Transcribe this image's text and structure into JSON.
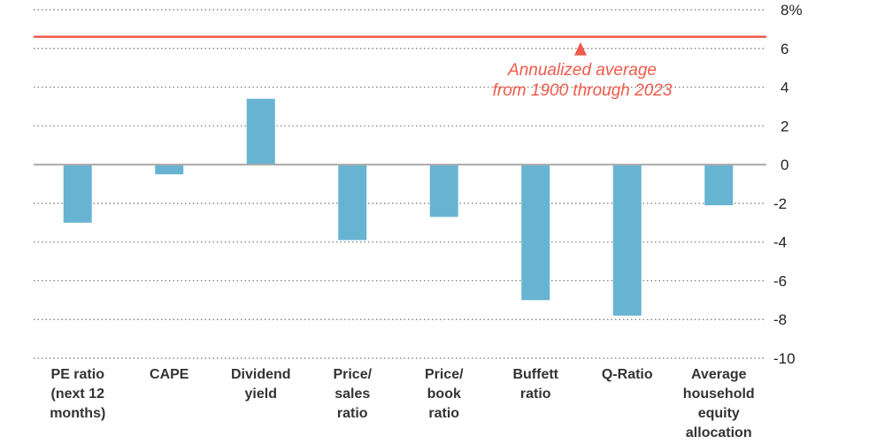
{
  "chart_data": {
    "type": "bar",
    "title": "",
    "xlabel": "",
    "ylabel": "",
    "ylim": [
      -10,
      8
    ],
    "y_ticks": [
      "8%",
      "6",
      "4",
      "2",
      "0",
      "-2",
      "-4",
      "-6",
      "-8",
      "-10"
    ],
    "y_tick_values": [
      8,
      6,
      4,
      2,
      0,
      -2,
      -4,
      -6,
      -8,
      -10
    ],
    "grid": true,
    "categories": [
      [
        "PE ratio",
        "(next 12",
        "months)"
      ],
      [
        "CAPE"
      ],
      [
        "Dividend",
        "yield"
      ],
      [
        "Price/",
        "sales",
        "ratio"
      ],
      [
        "Price/",
        "book",
        "ratio"
      ],
      [
        "Buffett",
        "ratio"
      ],
      [
        "Q-Ratio"
      ],
      [
        "Average",
        "household",
        "equity",
        "allocation"
      ]
    ],
    "values": [
      -3.0,
      -0.5,
      3.4,
      -3.9,
      -2.7,
      -7.0,
      -7.8,
      -2.1
    ],
    "reference_line": {
      "value": 6.6,
      "annotation": [
        "Annualized average",
        "from 1900 through 2023"
      ]
    },
    "colors": {
      "bar": "#67b3d2",
      "reference": "#ef5a4a",
      "grid": "#777777",
      "zero": "#aaaaaa"
    }
  }
}
